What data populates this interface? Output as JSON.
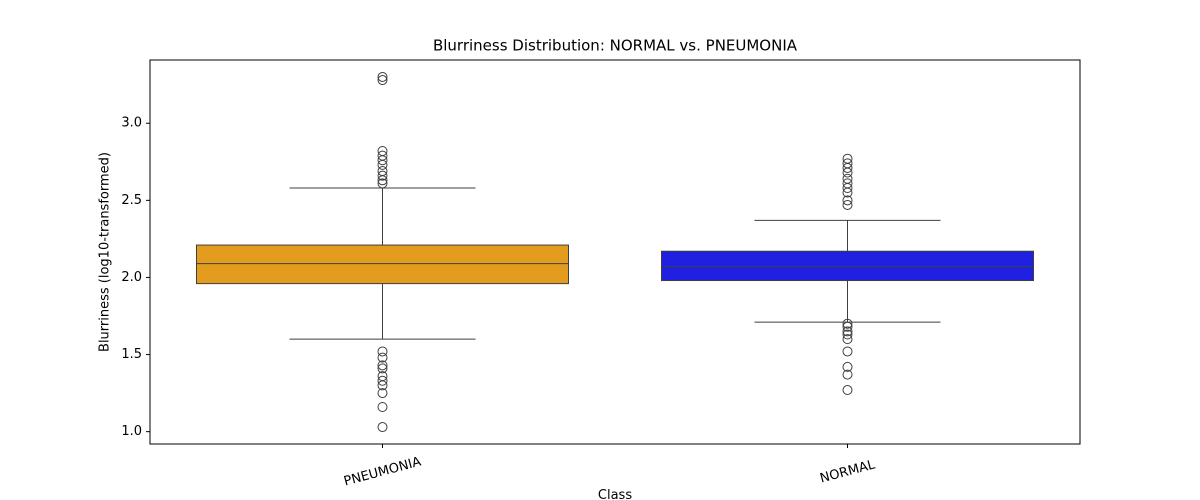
{
  "chart_data": {
    "type": "box",
    "title": "Blurriness Distribution: NORMAL vs. PNEUMONIA",
    "x_label": "Class",
    "y_label": "Blurriness (log10-transformed)",
    "categories": [
      "PNEUMONIA",
      "NORMAL"
    ],
    "boxes": [
      {
        "color": "#e49c1e",
        "whislo": 1.6,
        "q1": 1.96,
        "med": 2.09,
        "q3": 2.21,
        "whishi": 2.58,
        "fliers": [
          3.3,
          3.28,
          2.82,
          2.79,
          2.76,
          2.73,
          2.69,
          2.66,
          2.63,
          2.61,
          1.52,
          1.48,
          1.43,
          1.41,
          1.36,
          1.33,
          1.3,
          1.25,
          1.16,
          1.03
        ]
      },
      {
        "color": "#2020e0",
        "whislo": 1.71,
        "q1": 1.98,
        "med": 2.07,
        "q3": 2.17,
        "whishi": 2.37,
        "fliers": [
          2.77,
          2.74,
          2.71,
          2.68,
          2.64,
          2.61,
          2.58,
          2.55,
          2.5,
          2.47,
          1.7,
          1.68,
          1.65,
          1.63,
          1.6,
          1.52,
          1.42,
          1.37,
          1.27
        ]
      }
    ],
    "ylim": [
      0.92,
      3.41
    ],
    "yticks": [
      {
        "value": 1,
        "label": "1.0"
      },
      1.5,
      {
        "value": 2,
        "label": "2.0"
      },
      2.5,
      {
        "value": 3,
        "label": "3.0"
      }
    ]
  }
}
